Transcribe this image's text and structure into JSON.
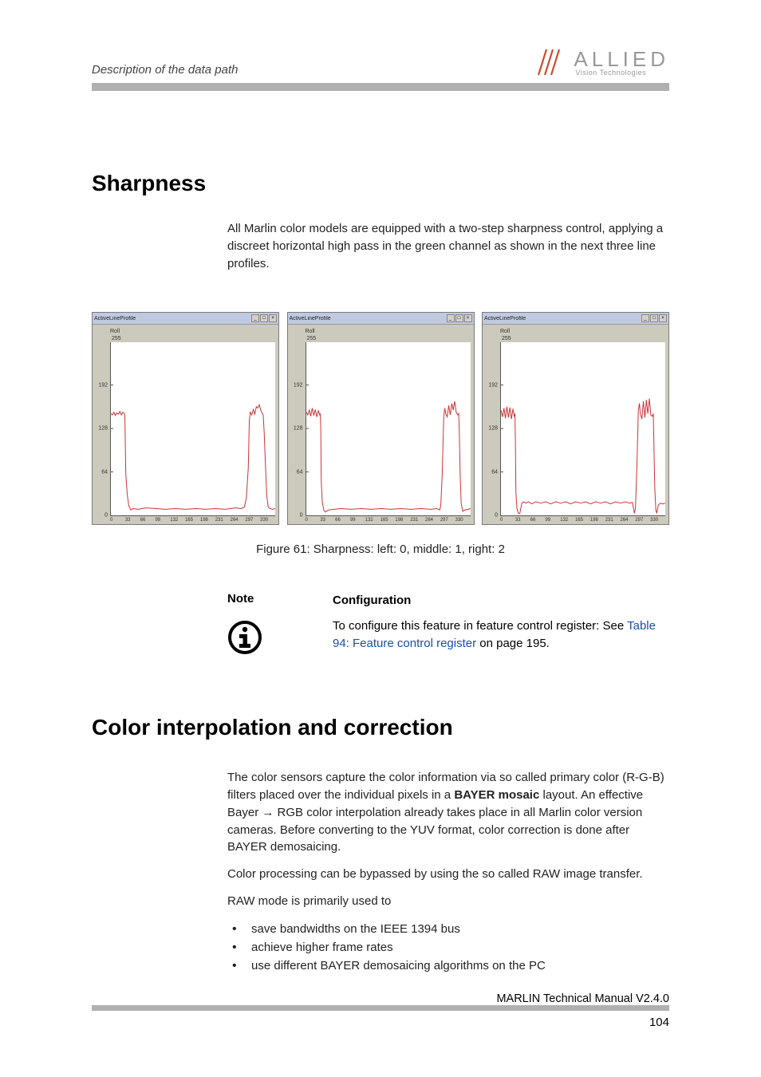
{
  "header": {
    "section_title": "Description of the data path",
    "logo_main": "ALLIED",
    "logo_sub": "Vision Technologies"
  },
  "section_sharpness": {
    "heading": "Sharpness",
    "paragraph": "All Marlin color models are equipped with a two-step sharpness control, applying a discreet horizontal high pass in the green channel as shown in the next three line profiles."
  },
  "charts": {
    "window_title": "ActiveLineProfile",
    "sub_title": "Roll",
    "y_max_label": "255",
    "y_ticks": [
      {
        "label": "192",
        "pos_pct": 24.7
      },
      {
        "label": "128",
        "pos_pct": 49.8
      },
      {
        "label": "64",
        "pos_pct": 74.9
      }
    ],
    "x_ticks": [
      "0",
      "33",
      "66",
      "99",
      "132",
      "165",
      "198",
      "231",
      "264",
      "297",
      "330"
    ],
    "xlim": [
      0,
      330
    ],
    "ylim": [
      0,
      255
    ],
    "line_color": "#cc3333",
    "background_color": "#ffffff",
    "window_bg_color": "#cccabc",
    "titlebar_color": "#bfc9e0",
    "profiles": [
      {
        "label": "0",
        "points": [
          [
            0,
            150
          ],
          [
            3,
            148
          ],
          [
            6,
            152
          ],
          [
            9,
            147
          ],
          [
            12,
            151
          ],
          [
            15,
            149
          ],
          [
            18,
            153
          ],
          [
            21,
            148
          ],
          [
            24,
            152
          ],
          [
            27,
            150
          ],
          [
            28,
            147
          ],
          [
            30,
            60
          ],
          [
            33,
            30
          ],
          [
            36,
            14
          ],
          [
            40,
            8
          ],
          [
            45,
            10
          ],
          [
            55,
            9
          ],
          [
            70,
            11
          ],
          [
            90,
            10
          ],
          [
            110,
            9
          ],
          [
            130,
            10
          ],
          [
            150,
            9
          ],
          [
            170,
            10
          ],
          [
            190,
            9
          ],
          [
            210,
            10
          ],
          [
            230,
            9
          ],
          [
            250,
            11
          ],
          [
            262,
            10
          ],
          [
            268,
            12
          ],
          [
            272,
            25
          ],
          [
            276,
            70
          ],
          [
            278,
            140
          ],
          [
            280,
            152
          ],
          [
            283,
            148
          ],
          [
            286,
            156
          ],
          [
            289,
            149
          ],
          [
            292,
            160
          ],
          [
            295,
            158
          ],
          [
            298,
            163
          ],
          [
            301,
            155
          ],
          [
            304,
            150
          ],
          [
            306,
            148
          ],
          [
            308,
            120
          ],
          [
            310,
            80
          ],
          [
            313,
            30
          ],
          [
            316,
            12
          ],
          [
            320,
            10
          ],
          [
            325,
            9
          ],
          [
            330,
            10
          ]
        ]
      },
      {
        "label": "1",
        "points": [
          [
            0,
            152
          ],
          [
            3,
            148
          ],
          [
            6,
            155
          ],
          [
            9,
            146
          ],
          [
            12,
            158
          ],
          [
            15,
            147
          ],
          [
            18,
            156
          ],
          [
            21,
            145
          ],
          [
            24,
            154
          ],
          [
            27,
            148
          ],
          [
            28,
            150
          ],
          [
            29,
            130
          ],
          [
            30,
            50
          ],
          [
            32,
            20
          ],
          [
            35,
            8
          ],
          [
            38,
            5
          ],
          [
            45,
            8
          ],
          [
            55,
            9
          ],
          [
            70,
            10
          ],
          [
            90,
            9
          ],
          [
            110,
            10
          ],
          [
            130,
            9
          ],
          [
            150,
            10
          ],
          [
            170,
            9
          ],
          [
            190,
            10
          ],
          [
            210,
            9
          ],
          [
            230,
            10
          ],
          [
            250,
            9
          ],
          [
            262,
            10
          ],
          [
            268,
            8
          ],
          [
            270,
            15
          ],
          [
            273,
            60
          ],
          [
            276,
            145
          ],
          [
            278,
            158
          ],
          [
            280,
            150
          ],
          [
            283,
            145
          ],
          [
            286,
            162
          ],
          [
            289,
            148
          ],
          [
            292,
            165
          ],
          [
            295,
            155
          ],
          [
            298,
            168
          ],
          [
            301,
            152
          ],
          [
            304,
            148
          ],
          [
            306,
            150
          ],
          [
            307,
            130
          ],
          [
            309,
            60
          ],
          [
            311,
            18
          ],
          [
            314,
            6
          ],
          [
            318,
            8
          ],
          [
            325,
            9
          ],
          [
            330,
            10
          ]
        ]
      },
      {
        "label": "2",
        "points": [
          [
            0,
            155
          ],
          [
            3,
            145
          ],
          [
            6,
            158
          ],
          [
            9,
            143
          ],
          [
            12,
            160
          ],
          [
            15,
            144
          ],
          [
            18,
            159
          ],
          [
            21,
            142
          ],
          [
            24,
            157
          ],
          [
            27,
            145
          ],
          [
            28,
            150
          ],
          [
            29,
            110
          ],
          [
            30,
            35
          ],
          [
            32,
            10
          ],
          [
            35,
            3
          ],
          [
            38,
            3
          ],
          [
            42,
            18
          ],
          [
            46,
            20
          ],
          [
            50,
            18
          ],
          [
            55,
            20
          ],
          [
            62,
            17
          ],
          [
            70,
            20
          ],
          [
            80,
            18
          ],
          [
            90,
            20
          ],
          [
            100,
            17
          ],
          [
            110,
            20
          ],
          [
            120,
            18
          ],
          [
            130,
            20
          ],
          [
            140,
            17
          ],
          [
            150,
            20
          ],
          [
            160,
            18
          ],
          [
            170,
            20
          ],
          [
            180,
            17
          ],
          [
            190,
            20
          ],
          [
            200,
            18
          ],
          [
            210,
            20
          ],
          [
            220,
            17
          ],
          [
            230,
            20
          ],
          [
            240,
            18
          ],
          [
            250,
            20
          ],
          [
            258,
            18
          ],
          [
            264,
            19
          ],
          [
            268,
            3
          ],
          [
            270,
            10
          ],
          [
            273,
            70
          ],
          [
            276,
            155
          ],
          [
            278,
            165
          ],
          [
            280,
            150
          ],
          [
            283,
            142
          ],
          [
            286,
            168
          ],
          [
            289,
            144
          ],
          [
            292,
            170
          ],
          [
            295,
            150
          ],
          [
            298,
            172
          ],
          [
            301,
            148
          ],
          [
            304,
            146
          ],
          [
            306,
            150
          ],
          [
            307,
            110
          ],
          [
            309,
            40
          ],
          [
            311,
            8
          ],
          [
            313,
            3
          ],
          [
            316,
            15
          ],
          [
            320,
            18
          ],
          [
            325,
            17
          ],
          [
            330,
            18
          ]
        ]
      }
    ]
  },
  "figure_caption": "Figure 61: Sharpness: left: 0, middle: 1, right: 2",
  "note": {
    "label": "Note",
    "heading": "Configuration",
    "text_before_link": "To configure this feature in feature control register: See ",
    "link_text": "Table 94: Feature control register",
    "text_after_link": " on page 195."
  },
  "section_color": {
    "heading": "Color interpolation and correction",
    "para1_pre": "The color sensors capture the color information via so called primary color (R-G-B) filters placed over the individual pixels in a ",
    "para1_bold": "BAYER mosaic",
    "para1_mid": " layout. An effective Bayer ",
    "arrow": "→",
    "para1_post": " RGB color interpolation already takes place in all Marlin color version cameras. Before converting to the YUV format, color correction is done after BAYER demosaicing.",
    "para2": "Color processing can be bypassed by using the so called RAW image transfer.",
    "para3": "RAW mode is primarily used to",
    "bullets": [
      "save bandwidths on the IEEE 1394 bus",
      "achieve higher frame rates",
      "use different BAYER demosaicing algorithms on the PC"
    ]
  },
  "footer": {
    "doc_title": "MARLIN Technical Manual V2.4.0",
    "page_number": "104"
  },
  "colors": {
    "header_bar": "#b0b0b0",
    "link": "#1a4fa8",
    "logo_stroke": "#d24a2e"
  }
}
